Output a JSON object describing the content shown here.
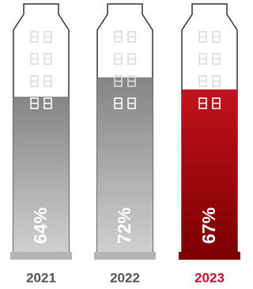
{
  "chart_data": {
    "type": "bar",
    "categories": [
      "2021",
      "2022",
      "2023"
    ],
    "values": [
      64,
      72,
      67
    ],
    "value_labels": [
      "64%",
      "72%",
      "67%"
    ],
    "colors": [
      "#848484",
      "#848484",
      "#c0141d"
    ],
    "colors_bottom": [
      "#cfcfcf",
      "#cfcfcf",
      "#7e0000"
    ],
    "label_colors": [
      "#555555",
      "#555555",
      "#c8102e"
    ],
    "ylim": [
      0,
      100
    ]
  }
}
